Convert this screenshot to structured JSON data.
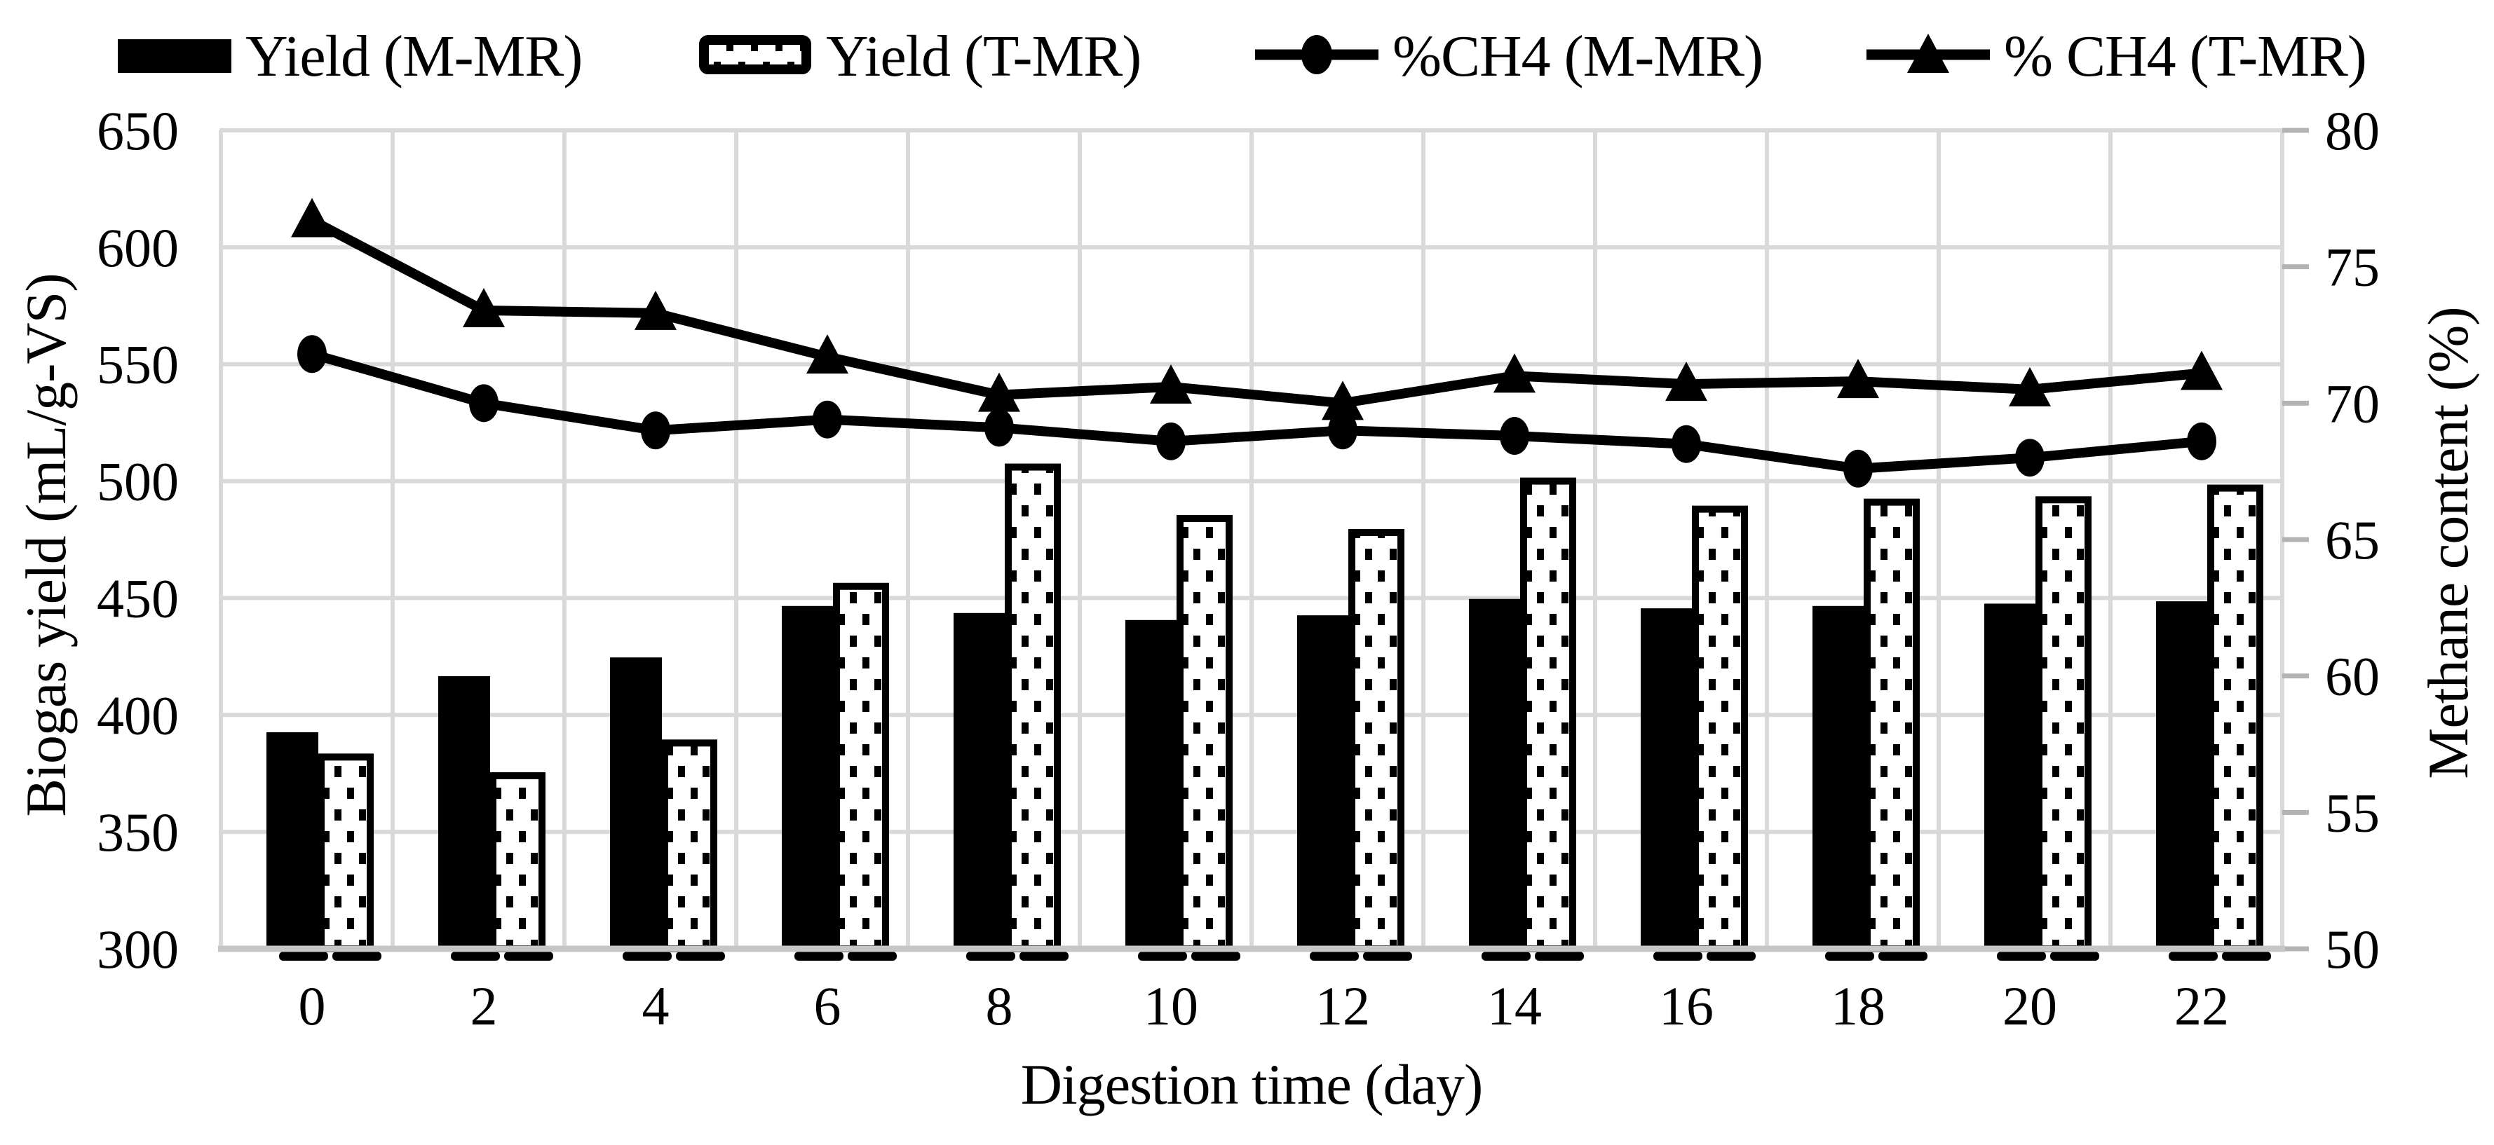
{
  "figure_title": "",
  "colors": {
    "ink": "#000000",
    "grid": "#d9d9d9",
    "axis": "#c6c6c6",
    "tick": "#b3b3b3",
    "background": "#ffffff"
  },
  "legend": {
    "position": "top",
    "swatches": [
      "solid-black-bar",
      "dotted-white-bar",
      "line-circle-marker",
      "line-triangle-marker"
    ]
  },
  "chart_data": {
    "type": "bar",
    "subtype": "bar+line combo, dual y-axis",
    "title": "",
    "xlabel": "Digestion time (day)",
    "ylabel_left": "Biogas yield (mL/g-VS)",
    "ylabel_right": "Methane content (%)",
    "categories": [
      "0",
      "2",
      "4",
      "6",
      "8",
      "10",
      "12",
      "14",
      "16",
      "18",
      "20",
      "22"
    ],
    "ylim_left": [
      300,
      650
    ],
    "yticks_left": [
      300,
      350,
      400,
      450,
      500,
      550,
      600,
      650
    ],
    "ylim_right": [
      50,
      80
    ],
    "yticks_right": [
      50,
      55,
      60,
      65,
      70,
      75,
      80
    ],
    "grid": true,
    "legend_position": "top",
    "series": [
      {
        "name": "Yield (M-MR)",
        "type": "bar",
        "axis": "left",
        "style": "solid-black",
        "values": [
          392,
          416,
          424,
          446,
          443,
          440,
          442,
          449,
          445,
          446,
          447,
          448
        ]
      },
      {
        "name": "Yield (T-MR)",
        "type": "bar",
        "axis": "left",
        "style": "dotted-white-black-border",
        "values": [
          382,
          374,
          388,
          455,
          506,
          484,
          478,
          500,
          488,
          491,
          492,
          497
        ]
      },
      {
        "name": "%CH4 (M-MR)",
        "type": "line",
        "axis": "right",
        "marker": "circle",
        "values": [
          71.8,
          70.0,
          69.0,
          69.4,
          69.1,
          68.6,
          69.0,
          68.8,
          68.5,
          67.6,
          68.0,
          68.6
        ]
      },
      {
        "name": "% CH4 (T-MR)",
        "type": "line",
        "axis": "right",
        "marker": "triangle",
        "values": [
          76.7,
          73.4,
          73.3,
          71.7,
          70.3,
          70.6,
          70.0,
          71.0,
          70.7,
          70.8,
          70.5,
          71.1
        ]
      }
    ]
  }
}
